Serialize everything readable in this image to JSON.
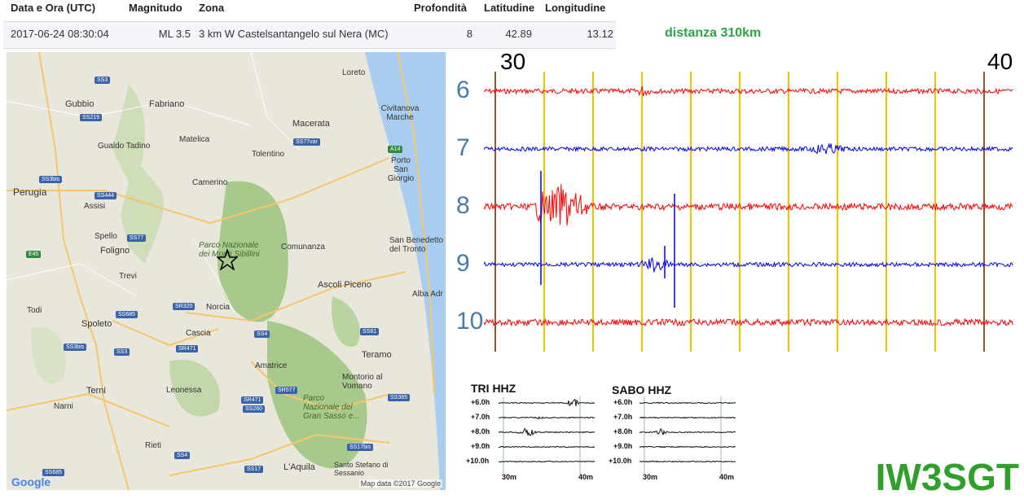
{
  "table": {
    "headers": {
      "datetime": "Data e Ora (UTC)",
      "magnitude": "Magnitudo",
      "zone": "Zona",
      "depth": "Profondità",
      "lat": "Latitudine",
      "lon": "Longitudine"
    },
    "row": {
      "datetime": "2017-06-24 08:30:04",
      "magnitude": "ML 3.5",
      "zone": "3 km W Castelsantangelo sul Nera (MC)",
      "depth": "8",
      "lat": "42.89",
      "lon": "13.12"
    }
  },
  "distance_label": "distanza 310km",
  "map": {
    "cities": [
      "Loreto",
      "Gubbio",
      "Fabriano",
      "Civitanova Marche",
      "Macerata",
      "Gualdo Tadino",
      "Matelica",
      "Tolentino",
      "Porto San Giorgio",
      "Camerino",
      "Perugia",
      "Assisi",
      "Spello",
      "Foligno",
      "Comunanza",
      "San Benedetto del Tronto",
      "Trevi",
      "Ascoli Piceno",
      "Alba Adr",
      "Norcia",
      "Todi",
      "Spoleto",
      "Cascia",
      "Teramo",
      "Amatrice",
      "Montorio al Vomano",
      "Terni",
      "Leonessa",
      "Narni",
      "Rieti",
      "L'Aquila",
      "Santo Stefano di Sessanio",
      "Parco Nazionale dei Monti Sibillini",
      "Parco Nazionale del Gran Sasso e..."
    ],
    "roads": [
      "SS3",
      "SS219",
      "SS3bis",
      "SS444",
      "SS77",
      "E45",
      "SS685",
      "SR320",
      "SR471",
      "SS4",
      "SS81",
      "SS77var",
      "A14",
      "SR577",
      "SS365",
      "SR471",
      "SS260",
      "SS17bis",
      "SS17",
      "SS3",
      "SS4",
      "SS3bis",
      "SS685"
    ],
    "credit": "Map data ©2017 Google",
    "logo": "Google"
  },
  "seismogram": {
    "minute_start": "30",
    "minute_end": "40",
    "rows": [
      "6",
      "7",
      "8",
      "9",
      "10"
    ],
    "colors": {
      "red": "#ff0000",
      "blue": "#0000ee",
      "grid": "#f2c200",
      "edge": "#a0522d"
    }
  },
  "station1": {
    "title": "TRI HHZ",
    "rows": [
      "+6.0h",
      "+7.0h",
      "+8.0h",
      "+9.0h",
      "+10.0h"
    ],
    "x_start": "30m",
    "x_end": "40m"
  },
  "station2": {
    "title": "SABO HHZ",
    "rows": [
      "+6.0h",
      "+7.0h",
      "+8.0h",
      "+9.0h",
      "+10.0h"
    ],
    "x_start": "30m",
    "x_end": "40m"
  },
  "callsign": "IW3SGT"
}
